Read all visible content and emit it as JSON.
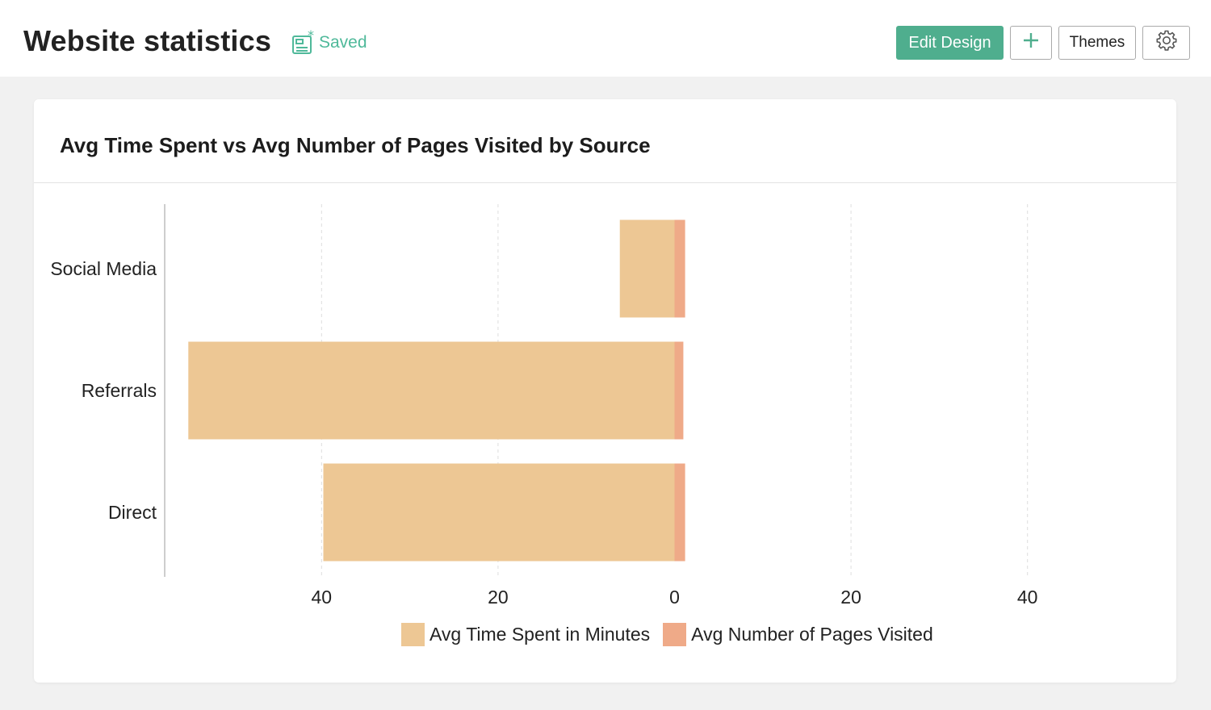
{
  "header": {
    "title": "Website statistics",
    "saved_label": "Saved",
    "buttons": {
      "edit_design": "Edit Design",
      "add": "+",
      "themes": "Themes",
      "settings_icon": "gear-icon"
    }
  },
  "colors": {
    "accent": "#4fae8e",
    "saved_text": "#4fb99a",
    "series_time": "#edc794",
    "series_pages": "#efaa88"
  },
  "chart_data": {
    "type": "bar",
    "orientation": "horizontal",
    "title": "Avg Time Spent vs Avg Number of Pages Visited by Source",
    "categories": [
      "Social Media",
      "Referrals",
      "Direct"
    ],
    "series": [
      {
        "name": "Avg Time Spent in Minutes",
        "values": [
          6.2,
          55.1,
          39.8
        ],
        "direction": "left",
        "color": "#edc794"
      },
      {
        "name": "Avg Number of Pages Visited",
        "values": [
          1.2,
          1.0,
          1.2
        ],
        "direction": "right",
        "color": "#efaa88"
      }
    ],
    "xlim": [
      -58,
      54
    ],
    "xticks": [
      {
        "value": -40,
        "label": "40"
      },
      {
        "value": -20,
        "label": "20"
      },
      {
        "value": 0,
        "label": "0"
      },
      {
        "value": 20,
        "label": "20"
      },
      {
        "value": 40,
        "label": "40"
      }
    ],
    "grid": true,
    "legend_position": "bottom"
  }
}
